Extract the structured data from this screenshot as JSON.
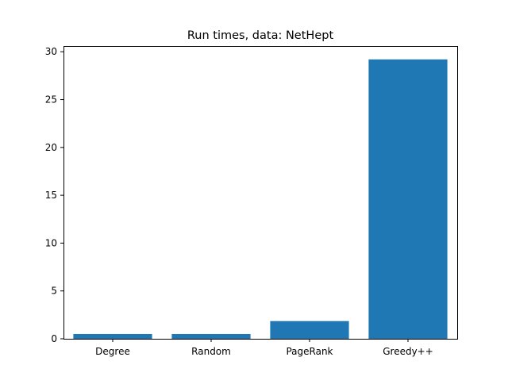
{
  "chart_data": {
    "type": "bar",
    "title": "Run times, data: NetHept",
    "xlabel": "",
    "ylabel": "",
    "categories": [
      "Degree",
      "Random",
      "PageRank",
      "Greedy++"
    ],
    "values": [
      0.5,
      0.5,
      1.85,
      29.2
    ],
    "ylim": [
      0,
      30.6
    ],
    "yticks": [
      0,
      5,
      10,
      15,
      20,
      25,
      30
    ],
    "grid": false,
    "bar_color": "#1f77b4"
  }
}
